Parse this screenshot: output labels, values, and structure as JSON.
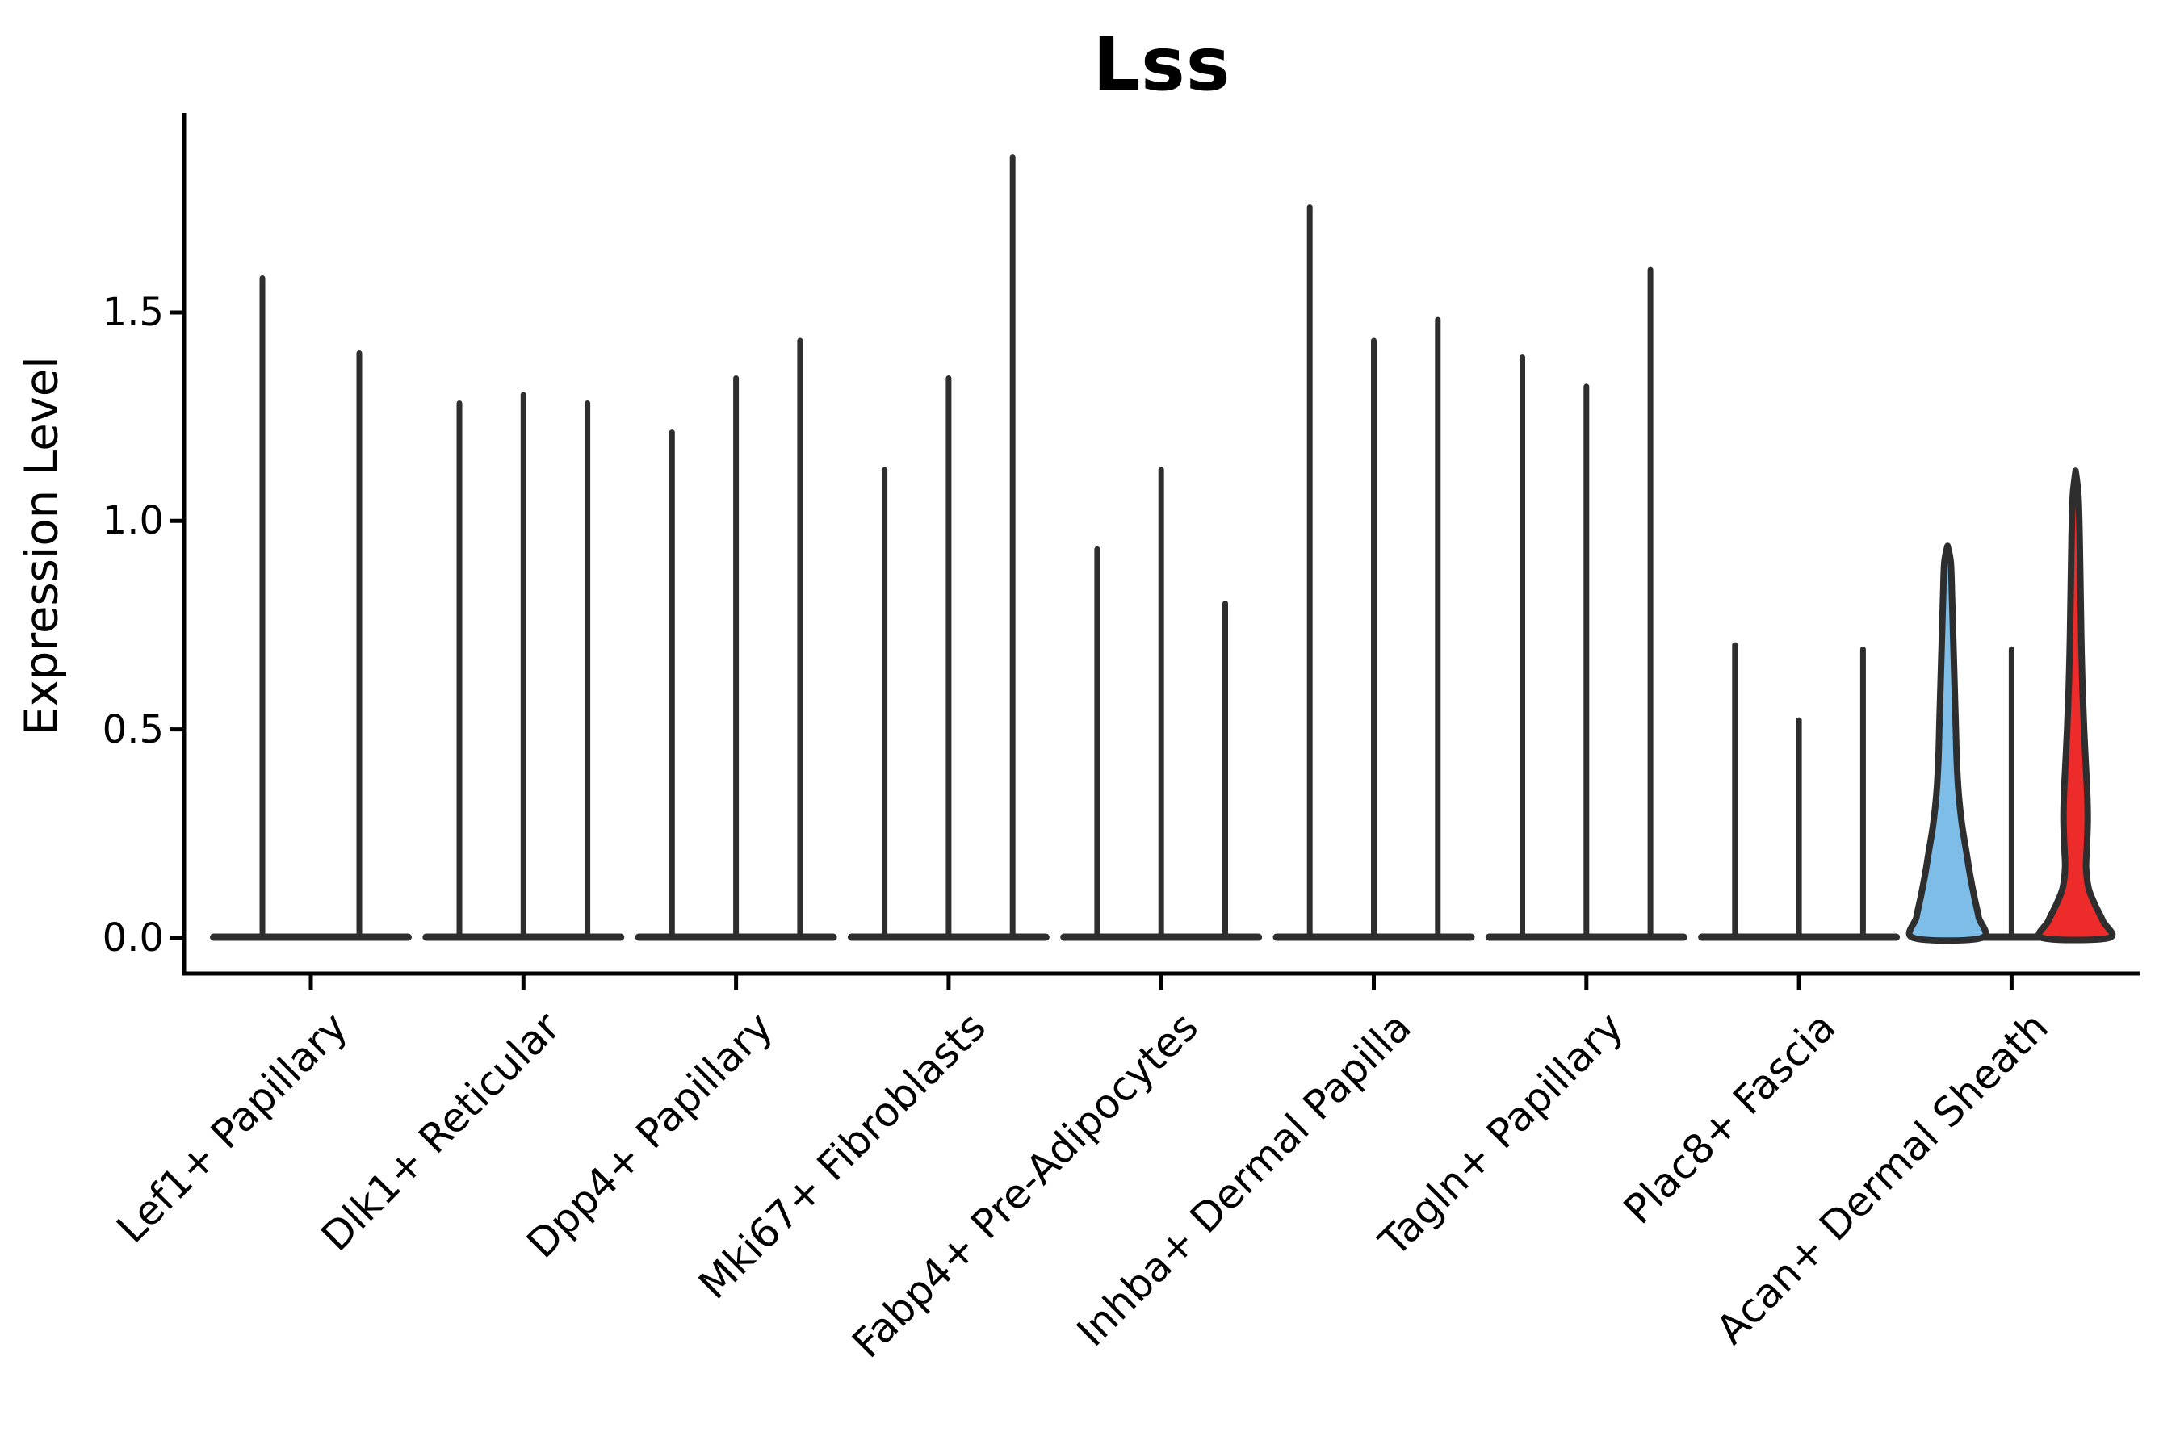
{
  "figure": {
    "title": "Lss",
    "y_axis_label": "Expression Level"
  },
  "chart_data": {
    "type": "violin",
    "title": "Lss",
    "xlabel": "",
    "ylabel": "Expression Level",
    "ylim": [
      -0.09,
      1.97
    ],
    "grid": false,
    "legend": "none",
    "y_ticks": [
      {
        "label": "0.0",
        "value": 0.0
      },
      {
        "label": "0.5",
        "value": 0.5
      },
      {
        "label": "1.0",
        "value": 1.0
      },
      {
        "label": "1.5",
        "value": 1.5
      }
    ],
    "categories": [
      "Lef1+ Papillary",
      "Dlk1+ Reticular",
      "Dpp4+ Papillary",
      "Mki67+ Fibroblasts",
      "Fabp4+ Pre-Adipocytes",
      "Inhba+ Dermal Papilla",
      "Tagln+ Papillary",
      "Plac8+ Fascia",
      "Acan+ Dermal Sheath"
    ],
    "groups": [
      {
        "category": "Lef1+ Papillary",
        "violins": [
          {
            "max": 1.59
          },
          {
            "max": 1.41
          }
        ]
      },
      {
        "category": "Dlk1+ Reticular",
        "violins": [
          {
            "max": 1.29
          },
          {
            "max": 1.31
          },
          {
            "max": 1.29
          }
        ]
      },
      {
        "category": "Dpp4+ Papillary",
        "violins": [
          {
            "max": 1.22
          },
          {
            "max": 1.35
          },
          {
            "max": 1.44
          }
        ]
      },
      {
        "category": "Mki67+ Fibroblasts",
        "violins": [
          {
            "max": 1.13
          },
          {
            "max": 1.35
          },
          {
            "max": 1.88
          }
        ]
      },
      {
        "category": "Fabp4+ Pre-Adipocytes",
        "violins": [
          {
            "max": 0.94
          },
          {
            "max": 1.13
          },
          {
            "max": 0.81
          }
        ]
      },
      {
        "category": "Inhba+ Dermal Papilla",
        "violins": [
          {
            "max": 1.76
          },
          {
            "max": 1.44
          },
          {
            "max": 1.49
          }
        ]
      },
      {
        "category": "Tagln+ Papillary",
        "violins": [
          {
            "max": 1.4
          },
          {
            "max": 1.33
          },
          {
            "max": 1.61
          }
        ]
      },
      {
        "category": "Plac8+ Fascia",
        "violins": [
          {
            "max": 0.71
          },
          {
            "max": 0.53
          },
          {
            "max": 0.7
          }
        ]
      },
      {
        "category": "Acan+ Dermal Sheath",
        "violins": [
          {
            "max": 0.94,
            "fill": "#7dbde8",
            "profile": [
              [
                0.94,
                0
              ],
              [
                0.9,
                4
              ],
              [
                0.82,
                5.5
              ],
              [
                0.72,
                7
              ],
              [
                0.62,
                8.5
              ],
              [
                0.52,
                10
              ],
              [
                0.42,
                11.5
              ],
              [
                0.34,
                14
              ],
              [
                0.27,
                18
              ],
              [
                0.21,
                23
              ],
              [
                0.15,
                28
              ],
              [
                0.1,
                33
              ],
              [
                0.05,
                38.5
              ],
              [
                0.0,
                42
              ]
            ]
          },
          {
            "max": 0.7
          },
          {
            "max": 1.12,
            "fill": "#ee2b2b",
            "profile": [
              [
                1.12,
                0
              ],
              [
                1.06,
                3.5
              ],
              [
                0.96,
                5
              ],
              [
                0.84,
                6
              ],
              [
                0.72,
                7
              ],
              [
                0.6,
                8.5
              ],
              [
                0.5,
                10.5
              ],
              [
                0.42,
                12.5
              ],
              [
                0.34,
                14.5
              ],
              [
                0.28,
                15
              ],
              [
                0.22,
                14
              ],
              [
                0.17,
                13
              ],
              [
                0.12,
                16
              ],
              [
                0.08,
                24
              ],
              [
                0.04,
                34
              ],
              [
                0.0,
                41
              ]
            ]
          }
        ]
      }
    ],
    "colors": {
      "violin_stroke": "#2e2e2e",
      "axis": "#000000",
      "highlight_blue": "#7dbde8",
      "highlight_red": "#ee2b2b",
      "background": "#ffffff"
    }
  }
}
